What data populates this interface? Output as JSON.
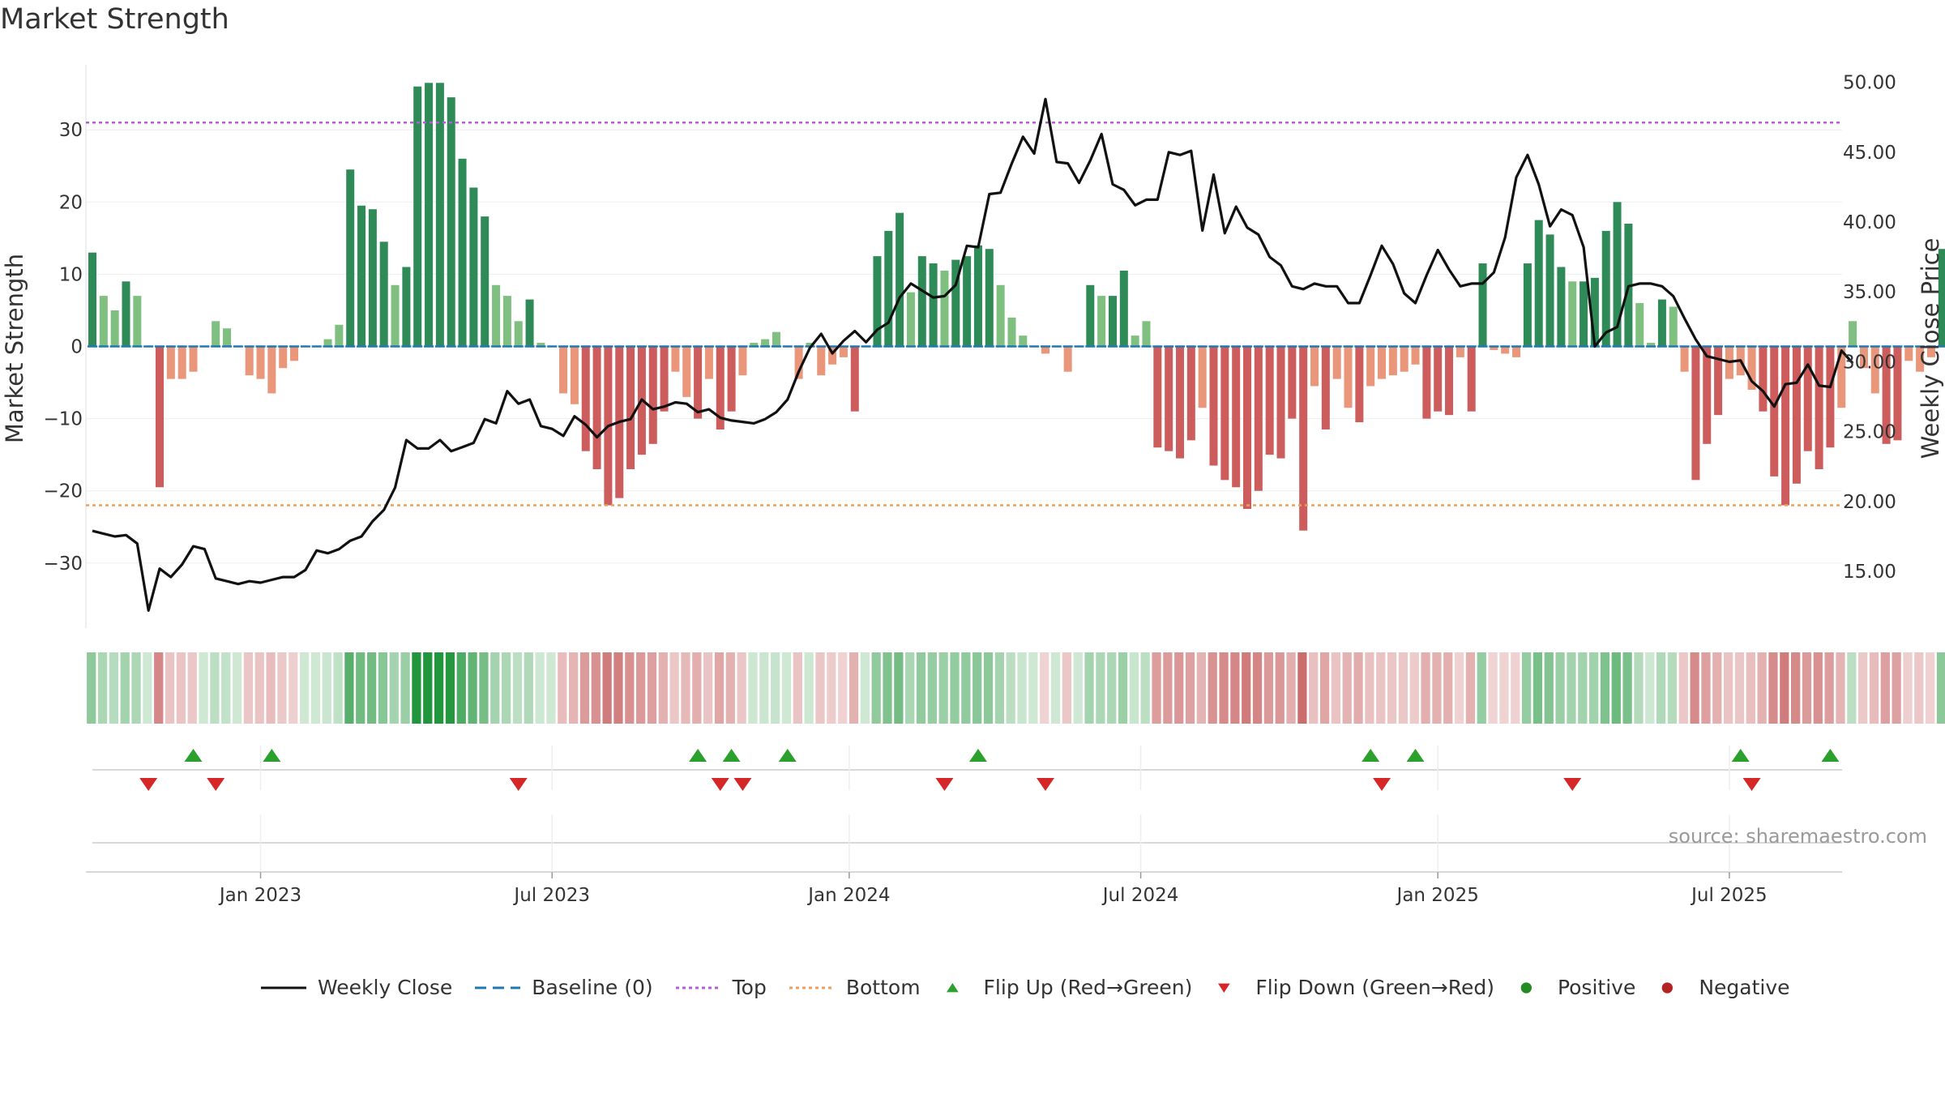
{
  "title": "Market Strength",
  "source": "source: sharemaestro.com",
  "colors": {
    "green_dark": "#2e8b57",
    "green_light": "#7fbf7f",
    "red_dark": "#cd5c5c",
    "red_light": "#e9967a",
    "top_line": "#b45fd0",
    "bottom_line": "#e8a060",
    "baseline": "#1f77b4",
    "price_line": "#111111",
    "flip_up": "#2ca02c",
    "flip_down": "#d62728",
    "positive": "#228b22",
    "negative": "#b22222"
  },
  "legend": [
    {
      "key": "weekly_close",
      "label": "Weekly Close"
    },
    {
      "key": "baseline",
      "label": "Baseline (0)"
    },
    {
      "key": "top",
      "label": "Top"
    },
    {
      "key": "bottom",
      "label": "Bottom"
    },
    {
      "key": "flip_up",
      "label": "Flip Up (Red→Green)"
    },
    {
      "key": "flip_down",
      "label": "Flip Down (Green→Red)"
    },
    {
      "key": "positive",
      "label": "Positive"
    },
    {
      "key": "negative",
      "label": "Negative"
    }
  ],
  "chart_data": {
    "type": "bar",
    "title": "Market Strength",
    "ylabel": "Market Strength",
    "y2label": "Weekly Close Price",
    "ylim": [
      -39,
      39
    ],
    "y2lim": [
      10.95,
      51.25
    ],
    "yticks": [
      -30,
      -20,
      -10,
      0,
      10,
      20,
      30
    ],
    "yticklabels": [
      "−30",
      "−20",
      "−10",
      "0",
      "10",
      "20",
      "30"
    ],
    "y2ticks": [
      15,
      20,
      25,
      30,
      35,
      40,
      45,
      50
    ],
    "y2ticklabels": [
      "15.00",
      "20.00",
      "25.00",
      "30.00",
      "35.00",
      "40.00",
      "45.00",
      "50.00"
    ],
    "xticks": [
      "Jan 2023",
      "Jul 2023",
      "Jan 2024",
      "Jul 2024",
      "Jan 2025",
      "Jul 2025"
    ],
    "xtick_week_index": [
      15,
      41,
      67.5,
      93.5,
      120,
      146
    ],
    "top_level": 31,
    "bottom_level": -22,
    "strength": [
      13,
      7,
      5,
      9,
      7,
      0,
      -19.5,
      -4.5,
      -4.5,
      -3.5,
      0,
      3.5,
      2.5,
      0,
      -4,
      -4.5,
      -6.5,
      -3,
      -2,
      0,
      0,
      1,
      3,
      24.5,
      19.5,
      19,
      14.5,
      8.5,
      11,
      36,
      36.5,
      36.5,
      34.5,
      26,
      22,
      18,
      8.5,
      7,
      3.5,
      6.5,
      0.5,
      0,
      -6.5,
      -8,
      -14.5,
      -17,
      -22,
      -21,
      -17,
      -15,
      -13.5,
      -9,
      -3.5,
      -7,
      -10,
      -4.5,
      -11.5,
      -9,
      -4,
      0.5,
      1,
      2,
      0,
      -4.5,
      0.5,
      -4,
      -2.5,
      -1.5,
      -9,
      0,
      12.5,
      16,
      18.5,
      7.5,
      12.5,
      11.5,
      10.5,
      12,
      12.5,
      14,
      13.5,
      8.5,
      4,
      1.5,
      0,
      -1,
      0,
      -3.5,
      0,
      8.5,
      7,
      7,
      10.5,
      1.5,
      3.5,
      -14,
      -14.5,
      -15.5,
      -13,
      -8.5,
      -16.5,
      -18.5,
      -19.5,
      -22.5,
      -20,
      -15,
      -15.5,
      -10,
      -25.5,
      -5.5,
      -11.5,
      -4.5,
      -8.5,
      -10.5,
      -5.5,
      -4.5,
      -4,
      -3.5,
      -2.5,
      -10,
      -9,
      -9.5,
      -1.5,
      -9,
      11.5,
      -0.5,
      -1,
      -1.5,
      11.5,
      17.5,
      15.5,
      11,
      9,
      9,
      9.5,
      16,
      20,
      17,
      6,
      0.5,
      6.5,
      5.5,
      -3.5,
      -18.5,
      -13.5,
      -9.5,
      -4.5,
      -4,
      -6,
      -9,
      -18,
      -22,
      -19,
      -14.5,
      -17,
      -14,
      -8.5,
      3.5,
      -3,
      -6.5,
      -13.5,
      -13,
      -2,
      -3.5,
      -1.5,
      13.5,
      14.5
    ],
    "weekly_close": [
      17.9,
      17.7,
      17.5,
      17.6,
      17.0,
      12.2,
      15.2,
      14.6,
      15.5,
      16.8,
      16.6,
      14.5,
      14.3,
      14.1,
      14.3,
      14.2,
      14.4,
      14.6,
      14.6,
      15.1,
      16.5,
      16.3,
      16.6,
      17.2,
      17.5,
      18.6,
      19.4,
      21.0,
      24.4,
      23.8,
      23.8,
      24.4,
      23.6,
      23.9,
      24.2,
      25.9,
      25.6,
      27.9,
      27.0,
      27.3,
      25.4,
      25.2,
      24.7,
      26.1,
      25.5,
      24.6,
      25.4,
      25.7,
      25.9,
      27.3,
      26.6,
      26.8,
      27.1,
      27.0,
      26.4,
      26.6,
      26.0,
      25.8,
      25.7,
      25.6,
      25.9,
      26.4,
      27.3,
      29.3,
      31.0,
      32.0,
      30.6,
      31.5,
      32.2,
      31.4,
      32.3,
      32.8,
      34.6,
      35.6,
      35.1,
      34.6,
      34.7,
      35.5,
      38.3,
      38.2,
      42.0,
      42.1,
      44.2,
      46.1,
      44.9,
      48.8,
      44.3,
      44.2,
      42.8,
      44.4,
      46.3,
      42.7,
      42.3,
      41.2,
      41.6,
      41.6,
      45.0,
      44.8,
      45.1,
      39.4,
      43.4,
      39.2,
      41.1,
      39.6,
      39.1,
      37.5,
      36.9,
      35.4,
      35.2,
      35.6,
      35.4,
      35.4,
      34.2,
      34.2,
      36.2,
      38.3,
      37.0,
      34.9,
      34.2,
      36.2,
      38.0,
      36.6,
      35.4,
      35.6,
      35.6,
      36.4,
      38.9,
      43.2,
      44.8,
      42.7,
      39.7,
      40.9,
      40.5,
      38.2,
      31.1,
      32.1,
      32.5,
      35.4,
      35.6,
      35.6,
      35.4,
      34.7,
      33.1,
      31.6,
      30.4,
      30.2,
      30.0,
      30.1,
      28.6,
      27.9,
      26.8,
      28.4,
      28.5,
      29.8,
      28.3,
      28.2,
      30.8,
      29.9
    ],
    "flip_up_weeks": [
      9,
      16,
      54,
      57,
      62,
      79,
      114,
      118,
      147,
      155
    ],
    "flip_down_weeks": [
      5,
      11,
      38,
      56,
      58,
      76,
      85,
      115,
      132,
      148
    ],
    "xlabel": ""
  }
}
